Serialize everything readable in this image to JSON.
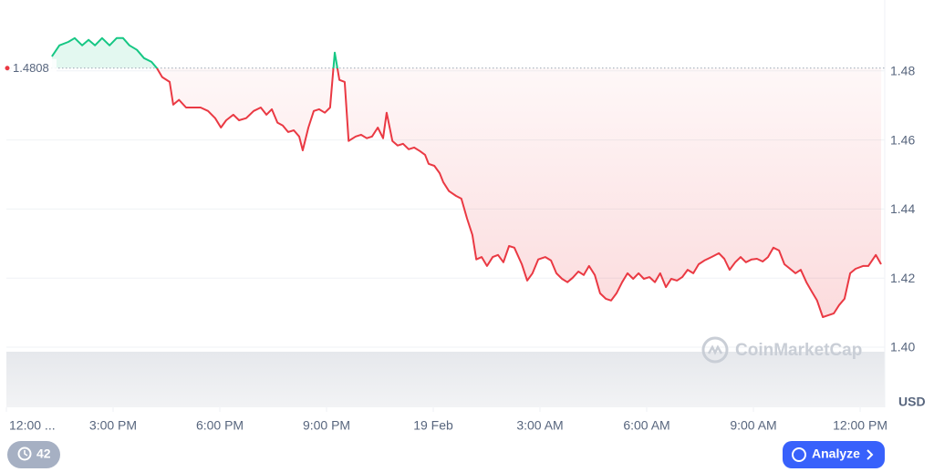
{
  "chart_data": {
    "type": "baseline-line",
    "baseline": 1.4808,
    "y_axis_label": "USD",
    "watermark": "CoinMarketCap",
    "up_color": "#16c784",
    "down_color": "#ea3943",
    "xlim": [
      0,
      24.64
    ],
    "xticks": [
      {
        "value": 0,
        "label": "12:00 ..."
      },
      {
        "value": 3,
        "label": "3:00 PM"
      },
      {
        "value": 6,
        "label": "6:00 PM"
      },
      {
        "value": 9,
        "label": "9:00 PM"
      },
      {
        "value": 12,
        "label": "19 Feb"
      },
      {
        "value": 15,
        "label": "3:00 AM"
      },
      {
        "value": 18,
        "label": "6:00 AM"
      },
      {
        "value": 21,
        "label": "9:00 AM"
      },
      {
        "value": 24,
        "label": "12:00 PM"
      }
    ],
    "ylim": [
      1.4,
      1.5
    ],
    "yticks": [
      {
        "value": 1.4,
        "label": "1.40"
      },
      1.42,
      1.44,
      1.46,
      1.48
    ],
    "grid": true,
    "x": [
      1.28,
      1.49,
      1.74,
      1.92,
      2.13,
      2.31,
      2.49,
      2.69,
      2.9,
      3.1,
      3.28,
      3.46,
      3.67,
      3.87,
      4.08,
      4.23,
      4.38,
      4.59,
      4.69,
      4.85,
      5.05,
      5.26,
      5.46,
      5.67,
      5.87,
      6.03,
      6.18,
      6.38,
      6.54,
      6.74,
      6.95,
      7.15,
      7.31,
      7.46,
      7.62,
      7.77,
      7.92,
      8.08,
      8.23,
      8.33,
      8.49,
      8.64,
      8.79,
      8.95,
      9.1,
      9.23,
      9.36,
      9.51,
      9.62,
      9.82,
      9.97,
      10.13,
      10.28,
      10.44,
      10.59,
      10.69,
      10.85,
      11.0,
      11.15,
      11.31,
      11.46,
      11.62,
      11.77,
      11.87,
      12.03,
      12.18,
      12.28,
      12.44,
      12.64,
      12.79,
      12.95,
      13.1,
      13.21,
      13.36,
      13.51,
      13.67,
      13.82,
      13.97,
      14.13,
      14.28,
      14.49,
      14.64,
      14.79,
      14.95,
      15.15,
      15.31,
      15.46,
      15.62,
      15.77,
      15.92,
      16.08,
      16.23,
      16.38,
      16.54,
      16.69,
      16.85,
      17.0,
      17.15,
      17.31,
      17.46,
      17.62,
      17.77,
      17.92,
      18.08,
      18.23,
      18.38,
      18.54,
      18.69,
      18.85,
      19.0,
      19.15,
      19.31,
      19.46,
      19.62,
      19.82,
      20.03,
      20.18,
      20.33,
      20.49,
      20.64,
      20.79,
      20.95,
      21.1,
      21.26,
      21.41,
      21.56,
      21.72,
      21.87,
      22.03,
      22.18,
      22.33,
      22.49,
      22.64,
      22.79,
      22.95,
      23.1,
      23.26,
      23.41,
      23.56,
      23.72,
      23.87,
      24.08,
      24.23,
      24.44,
      24.59
    ],
    "values": [
      1.4842,
      1.4874,
      1.4884,
      1.4895,
      1.4874,
      1.489,
      1.4874,
      1.4895,
      1.4874,
      1.4895,
      1.4895,
      1.4874,
      1.4861,
      1.4837,
      1.4826,
      1.4808,
      1.4782,
      1.4768,
      1.4702,
      1.4716,
      1.4694,
      1.4694,
      1.4694,
      1.4684,
      1.4663,
      1.4636,
      1.4657,
      1.4673,
      1.4657,
      1.4663,
      1.4684,
      1.4694,
      1.4673,
      1.4689,
      1.465,
      1.4642,
      1.4623,
      1.4628,
      1.461,
      1.457,
      1.4636,
      1.4684,
      1.4689,
      1.4679,
      1.4694,
      1.4853,
      1.4774,
      1.4768,
      1.4597,
      1.461,
      1.4615,
      1.4605,
      1.461,
      1.4636,
      1.4605,
      1.4679,
      1.4597,
      1.4584,
      1.4589,
      1.4573,
      1.4578,
      1.4568,
      1.4557,
      1.4531,
      1.4525,
      1.4504,
      1.4478,
      1.4452,
      1.4438,
      1.443,
      1.4372,
      1.4325,
      1.4254,
      1.4261,
      1.4235,
      1.4261,
      1.4267,
      1.4246,
      1.4293,
      1.4288,
      1.424,
      1.4193,
      1.4214,
      1.4254,
      1.4261,
      1.4251,
      1.4214,
      1.4198,
      1.4188,
      1.4201,
      1.4219,
      1.4209,
      1.4235,
      1.4209,
      1.4156,
      1.414,
      1.4135,
      1.4156,
      1.4188,
      1.4214,
      1.4198,
      1.4214,
      1.4198,
      1.4203,
      1.4188,
      1.4214,
      1.4174,
      1.4198,
      1.4193,
      1.4203,
      1.4224,
      1.4214,
      1.424,
      1.4251,
      1.4261,
      1.4272,
      1.4256,
      1.4224,
      1.4246,
      1.4261,
      1.4246,
      1.4254,
      1.4256,
      1.4248,
      1.4261,
      1.4288,
      1.428,
      1.424,
      1.4227,
      1.4214,
      1.4224,
      1.4188,
      1.4161,
      1.4135,
      1.4087,
      1.4092,
      1.4098,
      1.4122,
      1.414,
      1.4214,
      1.4227,
      1.4235,
      1.4235,
      1.4267,
      1.424
    ]
  },
  "ui": {
    "history_count": 42,
    "analyze": "Analyze"
  }
}
